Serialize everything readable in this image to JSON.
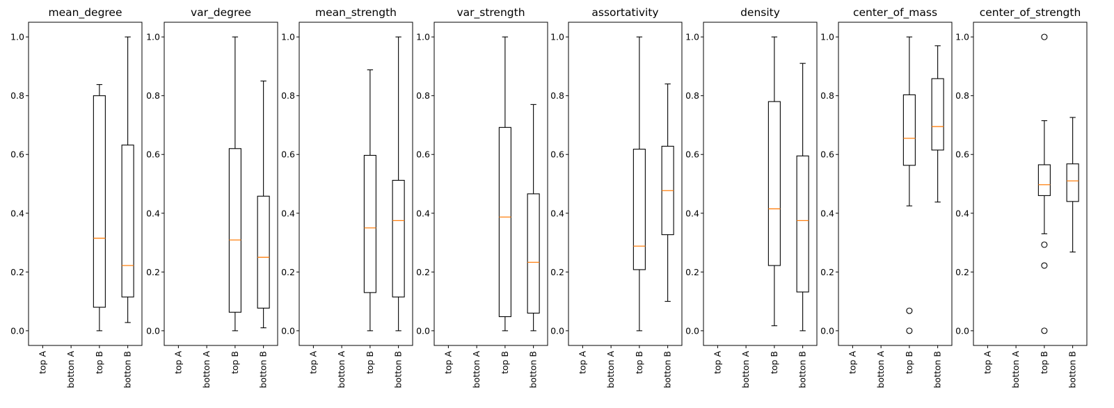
{
  "chart_data": [
    {
      "type": "box",
      "title": "mean_degree",
      "categories": [
        "top A",
        "botton A",
        "top B",
        "botton B"
      ],
      "ylim": [
        -0.05,
        1.05
      ],
      "yticks": [
        "0.0",
        "0.2",
        "0.4",
        "0.6",
        "0.8",
        "1.0"
      ],
      "boxes": [
        null,
        null,
        {
          "whislo": 0.0,
          "q1": 0.08,
          "med": 0.315,
          "q3": 0.8,
          "whishi": 0.838,
          "fliers": []
        },
        {
          "whislo": 0.028,
          "q1": 0.115,
          "med": 0.222,
          "q3": 0.632,
          "whishi": 1.0,
          "fliers": []
        }
      ]
    },
    {
      "type": "box",
      "title": "var_degree",
      "categories": [
        "top A",
        "botton A",
        "top B",
        "botton B"
      ],
      "ylim": [
        -0.05,
        1.05
      ],
      "yticks": [
        "0.0",
        "0.2",
        "0.4",
        "0.6",
        "0.8",
        "1.0"
      ],
      "boxes": [
        null,
        null,
        {
          "whislo": 0.0,
          "q1": 0.063,
          "med": 0.309,
          "q3": 0.62,
          "whishi": 1.0,
          "fliers": []
        },
        {
          "whislo": 0.01,
          "q1": 0.077,
          "med": 0.25,
          "q3": 0.458,
          "whishi": 0.85,
          "fliers": []
        }
      ]
    },
    {
      "type": "box",
      "title": "mean_strength",
      "categories": [
        "top A",
        "botton A",
        "top B",
        "botton B"
      ],
      "ylim": [
        -0.05,
        1.05
      ],
      "yticks": [
        "0.0",
        "0.2",
        "0.4",
        "0.6",
        "0.8",
        "1.0"
      ],
      "boxes": [
        null,
        null,
        {
          "whislo": 0.0,
          "q1": 0.13,
          "med": 0.35,
          "q3": 0.597,
          "whishi": 0.888,
          "fliers": []
        },
        {
          "whislo": 0.0,
          "q1": 0.115,
          "med": 0.375,
          "q3": 0.512,
          "whishi": 1.0,
          "fliers": []
        }
      ]
    },
    {
      "type": "box",
      "title": "var_strength",
      "categories": [
        "top A",
        "botton A",
        "top B",
        "botton B"
      ],
      "ylim": [
        -0.05,
        1.05
      ],
      "yticks": [
        "0.0",
        "0.2",
        "0.4",
        "0.6",
        "0.8",
        "1.0"
      ],
      "boxes": [
        null,
        null,
        {
          "whislo": 0.0,
          "q1": 0.048,
          "med": 0.387,
          "q3": 0.692,
          "whishi": 1.0,
          "fliers": []
        },
        {
          "whislo": 0.0,
          "q1": 0.06,
          "med": 0.233,
          "q3": 0.466,
          "whishi": 0.77,
          "fliers": []
        }
      ]
    },
    {
      "type": "box",
      "title": "assortativity",
      "categories": [
        "top A",
        "botton A",
        "top B",
        "botton B"
      ],
      "ylim": [
        -0.05,
        1.05
      ],
      "yticks": [
        "0.0",
        "0.2",
        "0.4",
        "0.6",
        "0.8",
        "1.0"
      ],
      "boxes": [
        null,
        null,
        {
          "whislo": 0.0,
          "q1": 0.208,
          "med": 0.288,
          "q3": 0.618,
          "whishi": 1.0,
          "fliers": []
        },
        {
          "whislo": 0.1,
          "q1": 0.327,
          "med": 0.477,
          "q3": 0.628,
          "whishi": 0.84,
          "fliers": []
        }
      ]
    },
    {
      "type": "box",
      "title": "density",
      "categories": [
        "top A",
        "botton A",
        "top B",
        "botton B"
      ],
      "ylim": [
        -0.05,
        1.05
      ],
      "yticks": [
        "0.0",
        "0.2",
        "0.4",
        "0.6",
        "0.8",
        "1.0"
      ],
      "boxes": [
        null,
        null,
        {
          "whislo": 0.017,
          "q1": 0.222,
          "med": 0.415,
          "q3": 0.78,
          "whishi": 1.0,
          "fliers": []
        },
        {
          "whislo": 0.0,
          "q1": 0.132,
          "med": 0.375,
          "q3": 0.595,
          "whishi": 0.91,
          "fliers": []
        }
      ]
    },
    {
      "type": "box",
      "title": "center_of_mass",
      "categories": [
        "top A",
        "botton A",
        "top B",
        "botton B"
      ],
      "ylim": [
        -0.05,
        1.05
      ],
      "yticks": [
        "0.0",
        "0.2",
        "0.4",
        "0.6",
        "0.8",
        "1.0"
      ],
      "boxes": [
        null,
        null,
        {
          "whislo": 0.425,
          "q1": 0.563,
          "med": 0.655,
          "q3": 0.803,
          "whishi": 1.0,
          "fliers": [
            0.068,
            0.0
          ]
        },
        {
          "whislo": 0.438,
          "q1": 0.615,
          "med": 0.695,
          "q3": 0.858,
          "whishi": 0.97,
          "fliers": []
        }
      ]
    },
    {
      "type": "box",
      "title": "center_of_strength",
      "categories": [
        "top A",
        "botton A",
        "top B",
        "botton B"
      ],
      "ylim": [
        -0.05,
        1.05
      ],
      "yticks": [
        "0.0",
        "0.2",
        "0.4",
        "0.6",
        "0.8",
        "1.0"
      ],
      "boxes": [
        null,
        null,
        {
          "whislo": 0.33,
          "q1": 0.46,
          "med": 0.497,
          "q3": 0.565,
          "whishi": 0.715,
          "fliers": [
            1.0,
            0.293,
            0.222,
            0.0
          ]
        },
        {
          "whislo": 0.268,
          "q1": 0.44,
          "med": 0.51,
          "q3": 0.568,
          "whishi": 0.726,
          "fliers": []
        }
      ]
    }
  ],
  "colors": {
    "box_edge": "#000000",
    "median": "#ff7f0e",
    "background": "#ffffff"
  }
}
